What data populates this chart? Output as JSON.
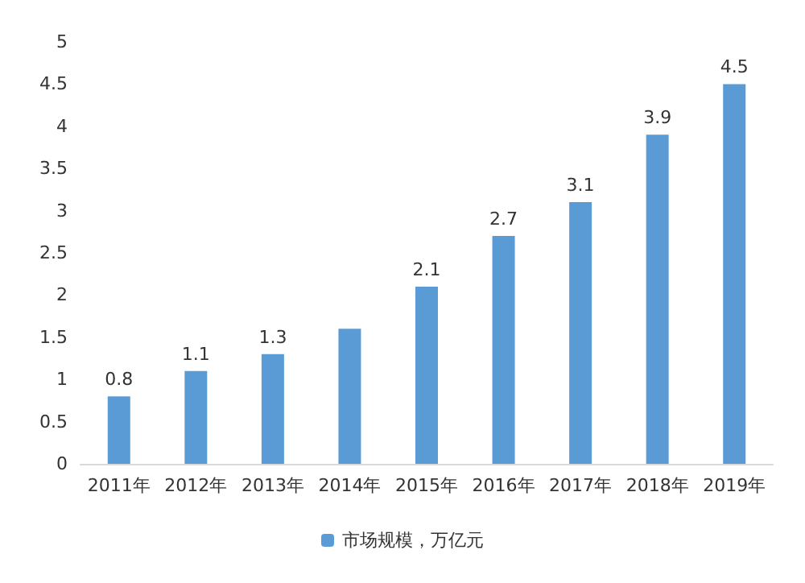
{
  "chart_data": {
    "type": "bar",
    "categories": [
      "2011年",
      "2012年",
      "2013年",
      "2014年",
      "2015年",
      "2016年",
      "2017年",
      "2018年",
      "2019年"
    ],
    "series": [
      {
        "name": "市场规模，万亿元",
        "color": "#5b9bd5",
        "values": [
          0.8,
          1.1,
          1.3,
          1.6,
          2.1,
          2.7,
          3.1,
          3.9,
          4.5
        ],
        "value_labels": [
          "0.8",
          "1.1",
          "1.3",
          null,
          "2.1",
          "2.7",
          "3.1",
          "3.9",
          "4.5"
        ]
      }
    ],
    "ylim": [
      0,
      5
    ],
    "yticks": [
      0,
      0.5,
      1,
      1.5,
      2,
      2.5,
      3,
      3.5,
      4,
      4.5,
      5
    ],
    "grid": false,
    "legend": "bottom"
  }
}
